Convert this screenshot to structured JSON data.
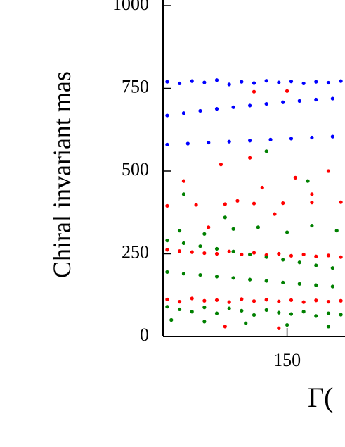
{
  "chart_data": {
    "type": "scatter",
    "y_label": "Chiral invariant mas",
    "x_label": "Γ(",
    "xlim": [
      120,
      164
    ],
    "ylim": [
      0,
      1000
    ],
    "xticks": [
      150
    ],
    "yticks": [
      0,
      250,
      500,
      750,
      1000
    ],
    "grid": false,
    "series": [
      {
        "name": "blue",
        "color": "#0000ff",
        "x": [
          121,
          124,
          127,
          130,
          133,
          136,
          139,
          142,
          145,
          148,
          151,
          154,
          157,
          160,
          163,
          121,
          125,
          129,
          133,
          137,
          141,
          145,
          149,
          153,
          157,
          161,
          121,
          126,
          131,
          136,
          141,
          146,
          151,
          156,
          161
        ],
        "values": [
          770,
          765,
          772,
          768,
          775,
          762,
          770,
          766,
          773,
          768,
          771,
          765,
          770,
          767,
          772,
          668,
          675,
          682,
          688,
          693,
          698,
          703,
          708,
          712,
          716,
          719,
          580,
          583,
          586,
          589,
          592,
          595,
          598,
          601,
          604
        ]
      },
      {
        "name": "red",
        "color": "#ff0000",
        "x": [
          121,
          124,
          127,
          130,
          133,
          136,
          139,
          142,
          145,
          148,
          151,
          154,
          157,
          160,
          163,
          121,
          124,
          127,
          130,
          133,
          136,
          139,
          142,
          145,
          148,
          151,
          154,
          157,
          160,
          163,
          125,
          131,
          134,
          138,
          141,
          144,
          147,
          152,
          156,
          160,
          121,
          128,
          135,
          142,
          149,
          156,
          163,
          142,
          150,
          135,
          148
        ],
        "values": [
          262,
          258,
          255,
          252,
          250,
          257,
          248,
          253,
          246,
          250,
          244,
          248,
          242,
          245,
          240,
          112,
          105,
          115,
          108,
          110,
          104,
          113,
          107,
          111,
          106,
          110,
          104,
          109,
          105,
          108,
          470,
          330,
          520,
          410,
          540,
          450,
          370,
          480,
          430,
          500,
          395,
          398,
          400,
          402,
          403,
          405,
          406,
          740,
          742,
          30,
          25
        ]
      },
      {
        "name": "green",
        "color": "#008000",
        "x": [
          121,
          125,
          129,
          133,
          137,
          141,
          145,
          149,
          153,
          157,
          161,
          121,
          125,
          129,
          133,
          137,
          141,
          145,
          149,
          153,
          157,
          161,
          121,
          124,
          127,
          130,
          133,
          136,
          139,
          142,
          145,
          148,
          151,
          154,
          157,
          160,
          163,
          124,
          130,
          137,
          143,
          150,
          156,
          162,
          125,
          135,
          145,
          155,
          122,
          130,
          140,
          150,
          160
        ],
        "values": [
          290,
          282,
          273,
          265,
          257,
          248,
          240,
          232,
          224,
          215,
          207,
          195,
          190,
          186,
          181,
          177,
          172,
          168,
          163,
          159,
          155,
          151,
          90,
          82,
          75,
          88,
          70,
          85,
          78,
          65,
          80,
          72,
          68,
          75,
          62,
          70,
          66,
          320,
          310,
          325,
          330,
          315,
          335,
          320,
          430,
          360,
          560,
          470,
          50,
          45,
          40,
          35,
          30
        ]
      }
    ]
  }
}
